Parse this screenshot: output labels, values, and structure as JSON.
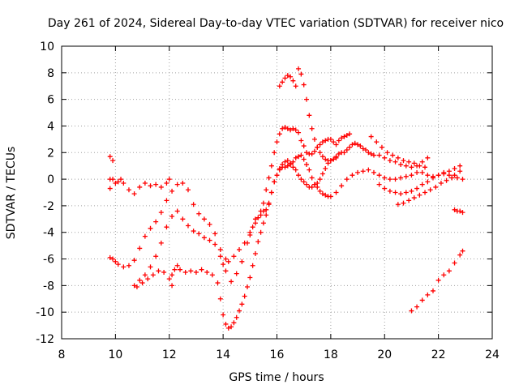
{
  "chart_data": {
    "type": "scatter",
    "title": "Day 261 of 2024, Sidereal Day-to-day VTEC variation (SDTVAR) for receiver nico",
    "xlabel": "GPS time / hours",
    "ylabel": "SDTVAR / TECUs",
    "xlim": [
      8,
      24
    ],
    "ylim": [
      -12,
      10
    ],
    "x_ticks": [
      8,
      10,
      12,
      14,
      16,
      18,
      20,
      22,
      24
    ],
    "y_ticks": [
      -12,
      -10,
      -8,
      -6,
      -4,
      -2,
      0,
      2,
      4,
      6,
      8,
      10
    ],
    "x_tick_labels": [
      "8",
      "10",
      "12",
      "14",
      "16",
      "18",
      "20",
      "22",
      "24"
    ],
    "y_tick_labels": [
      "-12",
      "-10",
      "-8",
      "-6",
      "-4",
      "-2",
      "0",
      "2",
      "4",
      "6",
      "8",
      "10"
    ],
    "grid": true,
    "marker": "plus",
    "color": "#ff0000",
    "series": [
      {
        "name": "track-1",
        "x": [
          9.8,
          9.9,
          10.0,
          10.1,
          10.2,
          10.3,
          10.5,
          10.7,
          10.9,
          11.1,
          11.3,
          11.5,
          11.7,
          11.9,
          12.0
        ],
        "y": [
          0.0,
          0.0,
          -0.3,
          -0.2,
          0.0,
          -0.3,
          -0.8,
          -1.1,
          -0.6,
          -0.3,
          -0.5,
          -0.4,
          -0.6,
          -0.3,
          0.0
        ]
      },
      {
        "name": "track-2",
        "x": [
          9.8,
          9.9,
          10.0,
          10.1,
          10.3,
          10.5,
          10.7,
          10.9,
          11.1,
          11.3,
          11.5,
          11.7,
          11.9,
          12.1,
          12.3,
          12.5,
          12.7,
          12.9,
          13.1,
          13.3,
          13.5,
          13.7,
          13.9,
          14.0,
          14.1,
          14.2,
          14.4,
          14.6,
          14.8,
          15.0,
          15.2,
          15.4,
          15.5,
          15.6,
          15.7,
          15.8,
          15.9,
          16.0,
          16.1,
          16.2,
          16.3,
          16.4,
          16.5,
          16.6,
          16.7,
          16.8,
          16.9,
          17.0,
          17.1,
          17.2,
          17.3,
          17.4,
          17.5,
          17.6,
          17.7,
          17.8,
          17.9,
          18.0,
          18.1,
          18.2,
          18.3,
          18.4,
          18.5,
          18.6,
          18.7
        ],
        "y": [
          -5.9,
          -6.0,
          -6.2,
          -6.4,
          -6.6,
          -6.5,
          -6.1,
          -5.2,
          -4.3,
          -3.7,
          -3.2,
          -2.5,
          -1.6,
          -0.9,
          -0.4,
          -0.3,
          -0.8,
          -1.9,
          -2.6,
          -3.0,
          -3.4,
          -4.1,
          -5.8,
          -6.4,
          -6.0,
          -6.2,
          -5.8,
          -5.3,
          -4.8,
          -4.2,
          -3.0,
          -2.4,
          -1.8,
          -0.8,
          0.1,
          1.0,
          2.0,
          2.8,
          3.4,
          3.8,
          3.9,
          3.8,
          3.7,
          3.8,
          3.7,
          3.5,
          2.9,
          2.5,
          2.0,
          1.9,
          1.9,
          2.1,
          2.4,
          2.6,
          2.8,
          2.9,
          3.0,
          3.0,
          2.8,
          2.6,
          2.9,
          3.1,
          3.2,
          3.3,
          3.4
        ]
      },
      {
        "name": "track-3",
        "x": [
          10.7,
          10.9,
          11.1,
          11.3,
          11.5,
          11.7,
          11.9,
          12.1,
          12.3,
          12.5,
          12.7,
          12.9,
          13.1,
          13.3,
          13.5,
          13.7,
          13.9,
          14.1,
          14.3,
          14.5,
          14.7,
          14.9,
          15.0,
          15.1,
          15.2,
          15.3,
          15.4,
          15.5,
          15.6,
          15.7,
          15.8,
          15.9,
          16.0,
          16.1,
          16.2,
          16.3,
          16.4,
          16.5,
          16.6,
          16.7,
          16.8,
          16.9,
          17.0,
          17.1,
          17.2,
          17.3,
          17.4,
          17.5,
          17.6,
          17.7,
          17.8,
          17.9,
          18.0,
          18.1,
          18.2,
          18.3,
          18.4,
          18.5,
          18.6,
          18.7,
          18.8,
          18.9,
          19.0,
          19.1,
          19.2,
          19.3,
          19.4,
          19.5,
          19.6,
          19.8,
          20.0,
          20.2,
          20.4,
          20.6,
          20.8,
          21.0,
          21.2,
          21.4,
          21.6
        ],
        "y": [
          -8.0,
          -7.6,
          -7.2,
          -6.6,
          -5.8,
          -4.8,
          -3.6,
          -2.8,
          -2.4,
          -3.0,
          -3.5,
          -3.9,
          -4.1,
          -4.4,
          -4.6,
          -4.9,
          -5.3,
          -6.9,
          -7.7,
          -7.1,
          -6.2,
          -4.8,
          -4.0,
          -3.6,
          -3.3,
          -2.9,
          -2.7,
          -2.4,
          -2.3,
          -1.8,
          -1.0,
          -0.2,
          0.3,
          0.8,
          1.1,
          1.3,
          1.4,
          1.1,
          0.9,
          0.7,
          0.3,
          0.0,
          -0.2,
          -0.4,
          -0.6,
          -0.6,
          -0.4,
          -0.3,
          0.0,
          0.4,
          0.8,
          1.2,
          1.4,
          1.5,
          1.7,
          1.9,
          2.0,
          2.0,
          2.2,
          2.4,
          2.6,
          2.7,
          2.6,
          2.5,
          2.3,
          2.2,
          2.0,
          1.9,
          1.8,
          1.8,
          1.6,
          1.4,
          1.3,
          1.1,
          1.0,
          0.9,
          1.0,
          1.3,
          1.6
        ]
      },
      {
        "name": "track-4",
        "x": [
          10.8,
          11.0,
          11.2,
          11.4,
          11.6,
          11.8,
          12.0,
          12.1,
          12.2,
          12.3,
          12.4,
          12.6,
          12.8,
          13.0,
          13.2,
          13.4,
          13.6,
          13.8,
          13.9,
          14.0,
          14.1,
          14.2,
          14.3,
          14.4,
          14.5,
          14.6,
          14.7,
          14.8,
          14.9,
          15.0,
          15.1,
          15.2,
          15.3,
          15.4,
          15.5,
          15.6,
          15.7,
          15.8,
          15.9,
          16.0,
          16.1,
          16.2,
          16.3,
          16.4,
          16.5,
          16.6,
          16.7,
          16.8,
          16.9,
          17.0,
          17.1,
          17.2,
          17.3,
          17.4,
          17.5,
          17.6,
          17.7,
          17.8,
          17.9,
          18.0,
          18.2,
          18.4,
          18.6,
          18.8,
          19.0,
          19.2,
          19.4,
          19.6,
          19.8,
          20.0,
          20.2,
          20.4,
          20.6,
          20.8,
          21.0,
          21.2,
          21.4,
          21.6,
          21.8,
          22.0,
          22.2,
          22.4,
          22.6,
          22.8
        ],
        "y": [
          -8.1,
          -7.8,
          -7.5,
          -7.2,
          -6.9,
          -7.0,
          -7.5,
          -7.2,
          -6.8,
          -6.5,
          -6.8,
          -7.0,
          -6.9,
          -7.0,
          -6.8,
          -7.0,
          -7.2,
          -7.8,
          -9.0,
          -10.2,
          -10.9,
          -11.2,
          -11.1,
          -10.8,
          -10.4,
          -9.9,
          -9.4,
          -8.8,
          -8.1,
          -7.4,
          -6.5,
          -5.6,
          -4.7,
          -4.0,
          -3.3,
          -2.7,
          -1.9,
          -1.0,
          -0.2,
          0.3,
          0.7,
          0.9,
          0.9,
          1.0,
          1.2,
          1.3,
          1.6,
          1.7,
          1.8,
          1.5,
          1.1,
          0.7,
          0.1,
          -0.4,
          -0.6,
          -0.9,
          -1.1,
          -1.2,
          -1.3,
          -1.3,
          -1.0,
          -0.5,
          0.0,
          0.3,
          0.5,
          0.6,
          0.7,
          0.5,
          0.3,
          0.1,
          0.0,
          0.0,
          0.1,
          0.2,
          0.3,
          0.5,
          0.5,
          0.3,
          0.2,
          0.3,
          0.5,
          0.6,
          0.8,
          1.0
        ]
      },
      {
        "name": "track-5",
        "x": [
          16.1,
          16.2,
          16.3,
          16.4,
          16.5,
          16.6,
          16.7,
          16.8,
          16.9,
          17.0,
          17.1,
          17.2,
          17.3,
          17.4,
          17.5,
          17.6,
          17.7,
          17.8,
          17.9,
          18.0,
          18.1,
          18.2
        ],
        "y": [
          7.0,
          7.3,
          7.6,
          7.8,
          7.7,
          7.4,
          7.0,
          8.3,
          7.9,
          7.1,
          6.0,
          4.8,
          3.8,
          3.0,
          2.4,
          2.0,
          1.7,
          1.5,
          1.4,
          1.4,
          1.5,
          1.6
        ]
      },
      {
        "name": "track-6",
        "x": [
          19.5,
          19.7,
          19.9,
          20.1,
          20.3,
          20.5,
          20.7,
          20.9,
          21.1,
          21.3,
          21.5
        ],
        "y": [
          3.2,
          2.8,
          2.4,
          2.0,
          1.8,
          1.6,
          1.4,
          1.3,
          1.2,
          1.0,
          0.9
        ]
      },
      {
        "name": "track-7",
        "x": [
          19.8,
          20.0,
          20.2,
          20.4,
          20.6,
          20.8,
          21.0,
          21.2,
          21.4,
          21.6,
          21.8,
          22.0,
          22.2,
          22.4,
          22.6,
          22.8
        ],
        "y": [
          -0.4,
          -0.7,
          -0.9,
          -1.0,
          -1.1,
          -1.0,
          -0.9,
          -0.7,
          -0.4,
          -0.2,
          0.1,
          0.3,
          0.4,
          0.3,
          0.3,
          0.6
        ]
      },
      {
        "name": "track-8",
        "x": [
          20.5,
          20.7,
          20.9,
          21.1,
          21.3,
          21.5,
          21.7,
          21.9,
          22.1,
          22.3,
          22.5,
          22.7,
          22.9
        ],
        "y": [
          -1.9,
          -1.8,
          -1.6,
          -1.4,
          -1.2,
          -1.0,
          -0.8,
          -0.6,
          -0.3,
          -0.1,
          0.1,
          0.1,
          0.0
        ]
      },
      {
        "name": "track-9",
        "x": [
          21.0,
          21.2,
          21.4,
          21.6,
          21.8,
          22.0,
          22.2,
          22.4,
          22.6,
          22.8,
          22.9
        ],
        "y": [
          -9.9,
          -9.6,
          -9.1,
          -8.7,
          -8.4,
          -7.6,
          -7.2,
          -6.9,
          -6.3,
          -5.7,
          -5.4
        ]
      },
      {
        "name": "track-10",
        "x": [
          22.6,
          22.7,
          22.8,
          22.9
        ],
        "y": [
          -2.3,
          -2.4,
          -2.4,
          -2.5
        ]
      },
      {
        "name": "track-11",
        "x": [
          9.8,
          9.9
        ],
        "y": [
          1.7,
          1.4
        ]
      },
      {
        "name": "track-12",
        "x": [
          9.8
        ],
        "y": [
          -0.7
        ]
      },
      {
        "name": "track-13",
        "x": [
          12.1
        ],
        "y": [
          -8.0
        ]
      }
    ]
  }
}
